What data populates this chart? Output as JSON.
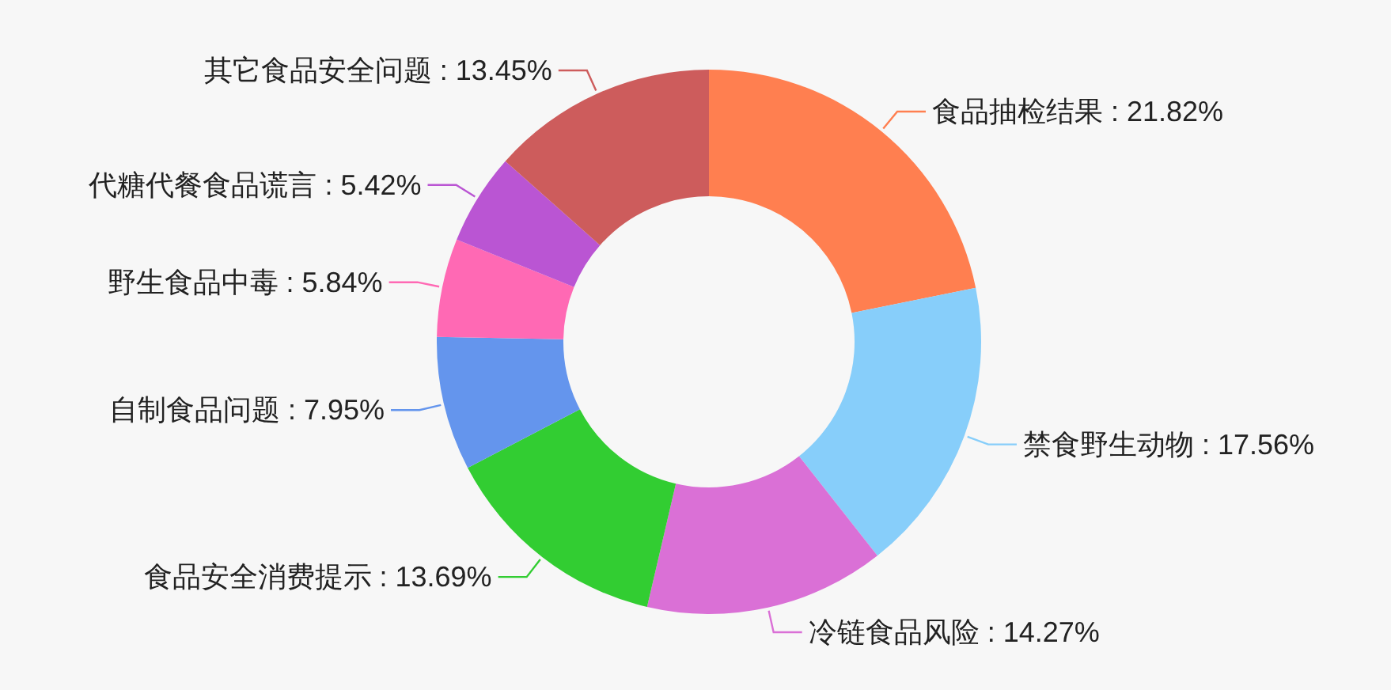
{
  "chart_data": {
    "type": "donut",
    "categories": [
      "食品抽检结果",
      "禁食野生动物",
      "冷链食品风险",
      "食品安全消费提示",
      "自制食品问题",
      "野生食品中毒",
      "代糖代餐食品谎言",
      "其它食品安全问题"
    ],
    "values": [
      21.82,
      17.56,
      14.27,
      13.69,
      7.95,
      5.84,
      5.42,
      13.45
    ],
    "value_labels": [
      "21.82%",
      "17.56%",
      "14.27%",
      "13.69%",
      "7.95%",
      "5.84%",
      "5.42%",
      "13.45%"
    ],
    "colors": [
      "#ff7f50",
      "#87cefa",
      "#da70d6",
      "#32cd32",
      "#6495ed",
      "#ff69b4",
      "#ba55d3",
      "#cd5c5c"
    ]
  }
}
